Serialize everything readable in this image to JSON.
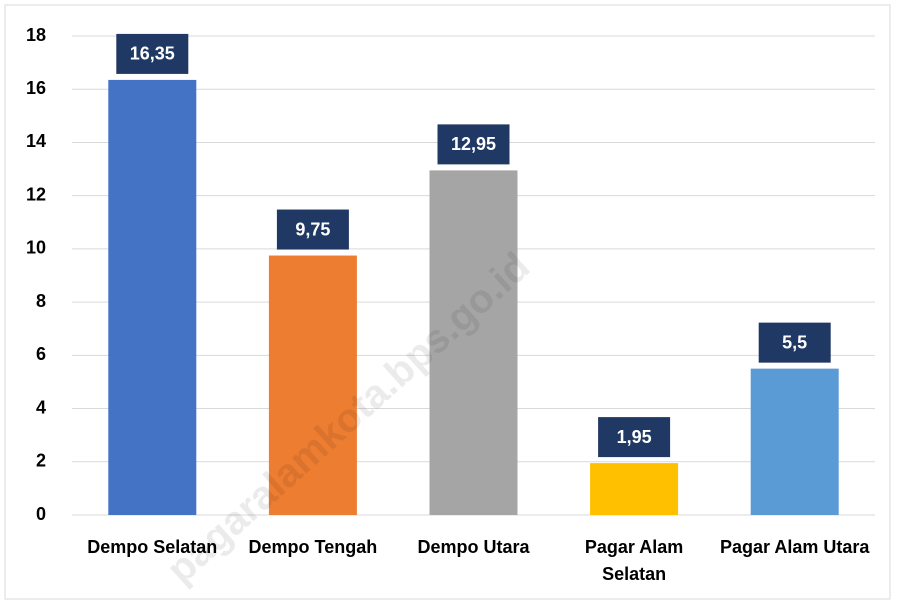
{
  "chart_data": {
    "type": "bar",
    "categories": [
      "Dempo Selatan",
      "Dempo Tengah",
      "Dempo Utara",
      "Pagar Alam Selatan",
      "Pagar Alam Utara"
    ],
    "values": [
      16.35,
      9.75,
      12.95,
      1.95,
      5.5
    ],
    "value_labels": [
      "16,35",
      "9,75",
      "12,95",
      "1,95",
      "5,5"
    ],
    "colors": [
      "#4472c4",
      "#ed7d31",
      "#a5a5a5",
      "#ffc000",
      "#5b9bd5"
    ],
    "ylim": [
      0,
      18
    ],
    "yticks": [
      0,
      2,
      4,
      6,
      8,
      10,
      12,
      14,
      16,
      18
    ],
    "grid": true,
    "watermark": "pagaralamkota.bps.go.id"
  }
}
